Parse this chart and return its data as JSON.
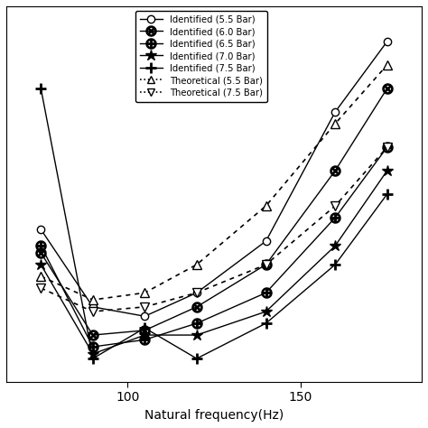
{
  "series": {
    "id_5p5": {
      "label": "Identified (5.5 Bar)",
      "x": [
        75,
        90,
        105,
        120,
        140,
        160,
        175
      ],
      "y": [
        6.5,
        3.2,
        2.8,
        3.8,
        6.0,
        11.5,
        14.5
      ],
      "linestyle": "-",
      "marker": "o"
    },
    "id_6p0": {
      "label": "Identified (6.0 Bar)",
      "x": [
        75,
        90,
        105,
        120,
        140,
        160,
        175
      ],
      "y": [
        5.5,
        2.0,
        2.2,
        3.2,
        5.0,
        9.0,
        12.5
      ],
      "linestyle": "-",
      "marker": "otimes"
    },
    "id_6p5": {
      "label": "Identified (6.5 Bar)",
      "x": [
        75,
        90,
        105,
        120,
        140,
        160,
        175
      ],
      "y": [
        5.8,
        1.5,
        1.8,
        2.5,
        3.8,
        7.0,
        10.0
      ],
      "linestyle": "-",
      "marker": "oplus"
    },
    "id_7p0": {
      "label": "Identified (7.0 Bar)",
      "x": [
        75,
        90,
        105,
        120,
        140,
        160,
        175
      ],
      "y": [
        5.0,
        1.2,
        2.0,
        2.0,
        3.0,
        5.8,
        9.0
      ],
      "linestyle": "-",
      "marker": "star"
    },
    "id_7p5": {
      "label": "Identified (7.5 Bar)",
      "x": [
        75,
        90,
        105,
        120,
        140,
        160,
        175
      ],
      "y": [
        12.5,
        1.0,
        2.3,
        1.0,
        2.5,
        5.0,
        8.0
      ],
      "linestyle": "-",
      "marker": "plus"
    },
    "th_5p5": {
      "label": "Theoretical (5.5 Bar)",
      "x": [
        75,
        90,
        105,
        120,
        140,
        160,
        175
      ],
      "y": [
        4.5,
        3.5,
        3.8,
        5.0,
        7.5,
        11.0,
        13.5
      ],
      "linestyle": ":",
      "marker": "triangle_up"
    },
    "th_7p5": {
      "label": "Theoretical (7.5 Bar)",
      "x": [
        75,
        90,
        105,
        120,
        140,
        160,
        175
      ],
      "y": [
        4.0,
        3.0,
        3.2,
        3.8,
        5.0,
        7.5,
        10.0
      ],
      "linestyle": ":",
      "marker": "triangle_down"
    }
  },
  "xlabel": "Natural frequency(Hz)",
  "xlim": [
    65,
    185
  ],
  "ylim": [
    0,
    16
  ],
  "xticks": [
    100,
    150
  ],
  "figsize": [
    4.74,
    4.74
  ],
  "dpi": 100
}
